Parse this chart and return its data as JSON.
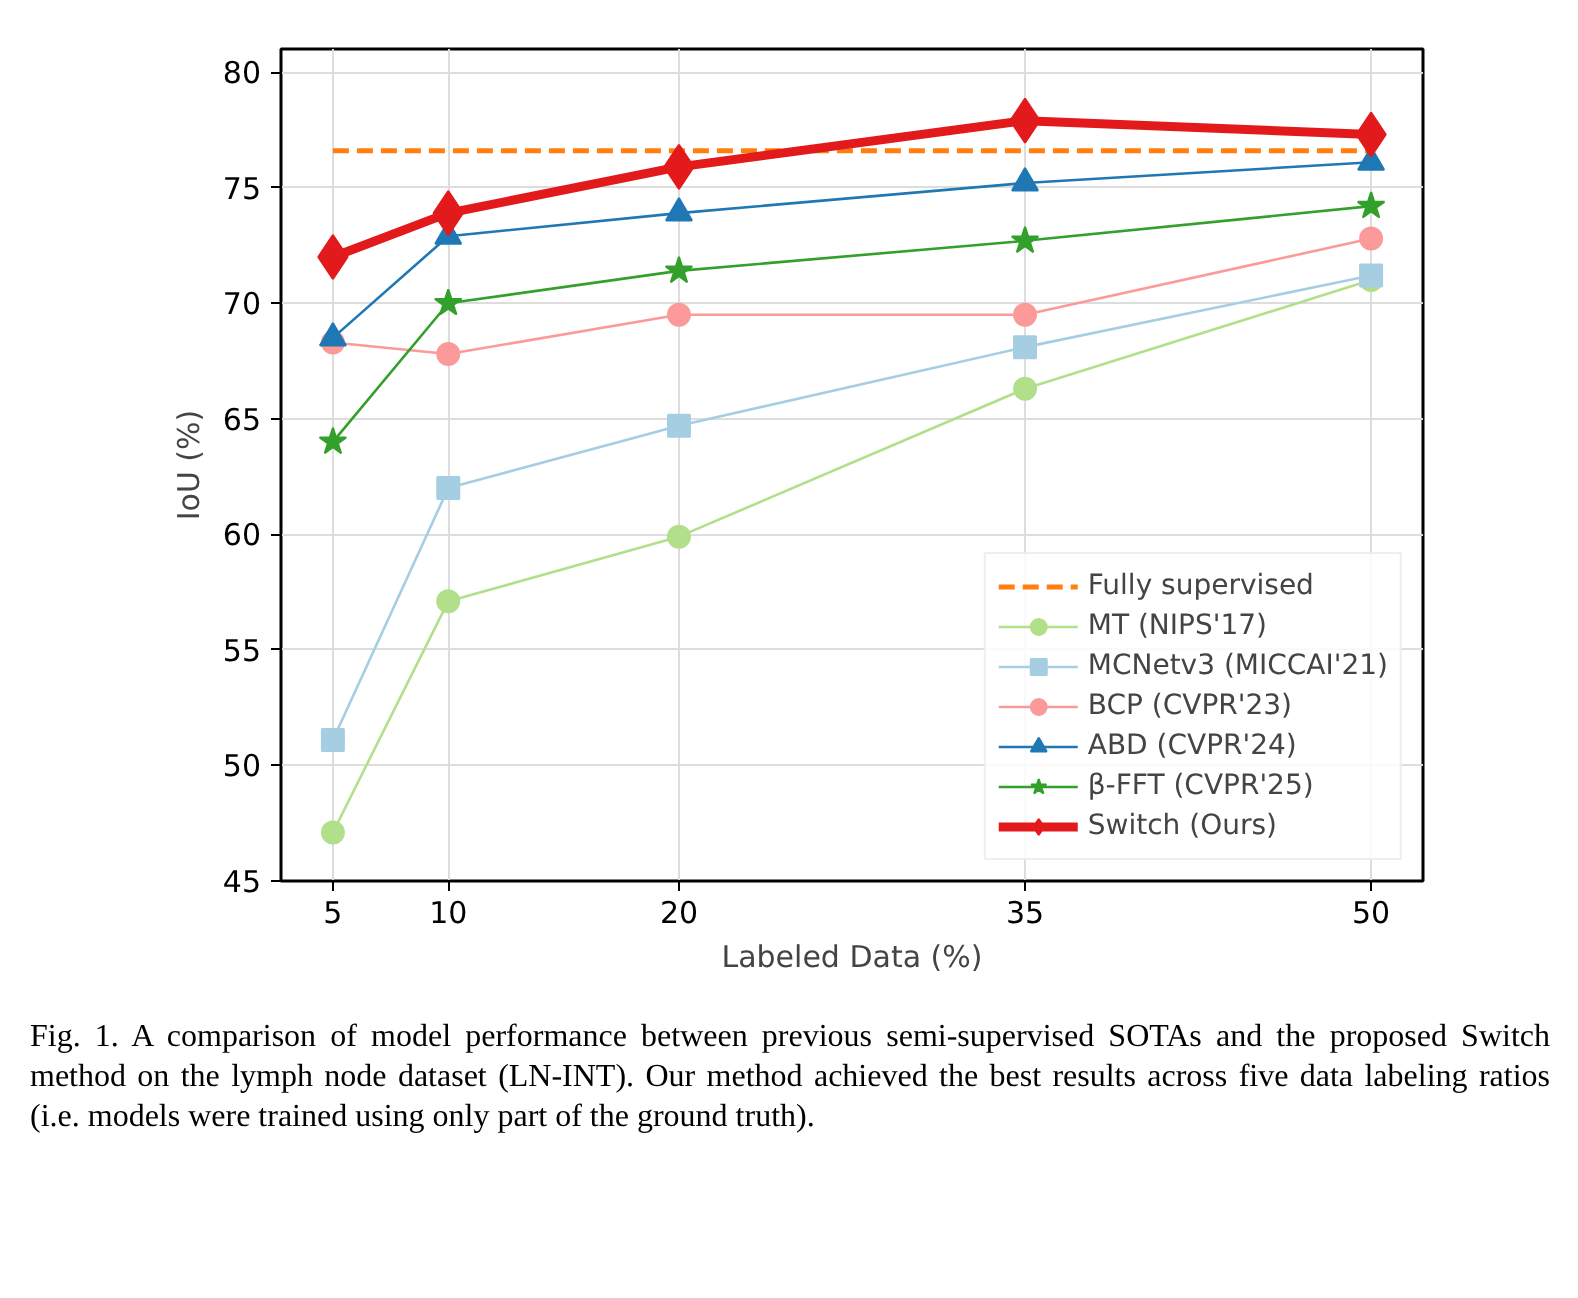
{
  "chart_data": {
    "type": "line",
    "xlabel": "Labeled Data (%)",
    "ylabel": "IoU (%)",
    "x": [
      5,
      10,
      20,
      35,
      50
    ],
    "xlim": [
      2.75,
      52.25
    ],
    "xticks": [
      5,
      10,
      20,
      35,
      50
    ],
    "ylim": [
      45,
      81
    ],
    "yticks": [
      45,
      50,
      55,
      60,
      65,
      70,
      75,
      80
    ],
    "grid": true,
    "legend": "bottom right",
    "series": [
      {
        "name": "Fully supervised",
        "color": "#ff7f0e",
        "values": [
          76.6,
          76.6,
          76.6,
          76.6,
          76.6
        ],
        "line_style": "dashed",
        "marker": "none"
      },
      {
        "name": "MT (NIPS'17)",
        "color": "#b2df8a",
        "values": [
          47.1,
          57.1,
          59.9,
          66.3,
          71.0
        ],
        "marker": "circle"
      },
      {
        "name": "MCNetv3 (MICCAI'21)",
        "color": "#a6cee3",
        "values": [
          51.1,
          62.0,
          64.7,
          68.1,
          71.2
        ],
        "marker": "square"
      },
      {
        "name": "BCP (CVPR'23)",
        "color": "#fb9a99",
        "values": [
          68.3,
          67.8,
          69.5,
          69.5,
          72.8
        ],
        "marker": "circle"
      },
      {
        "name": "ABD (CVPR'24)",
        "color": "#1f78b4",
        "values": [
          68.5,
          72.9,
          73.9,
          75.2,
          76.1
        ],
        "marker": "triangle"
      },
      {
        "name": "β-FFT (CVPR'25)",
        "color": "#33a02c",
        "values": [
          64.0,
          70.0,
          71.4,
          72.7,
          74.2
        ],
        "marker": "star"
      },
      {
        "name": "Switch (Ours)",
        "color": "#e31a1c",
        "values": [
          72.0,
          73.9,
          75.9,
          77.9,
          77.3
        ],
        "marker": "diamond"
      }
    ],
    "annotations": [
      "Fig. 1.  A comparison of model performance between previous semi-supervised SOTAs and the proposed Switch method on the lymph node dataset (LN-INT). Our method achieved the best results across five data labeling ratios (i.e. models were trained using only part of the ground truth)."
    ]
  }
}
